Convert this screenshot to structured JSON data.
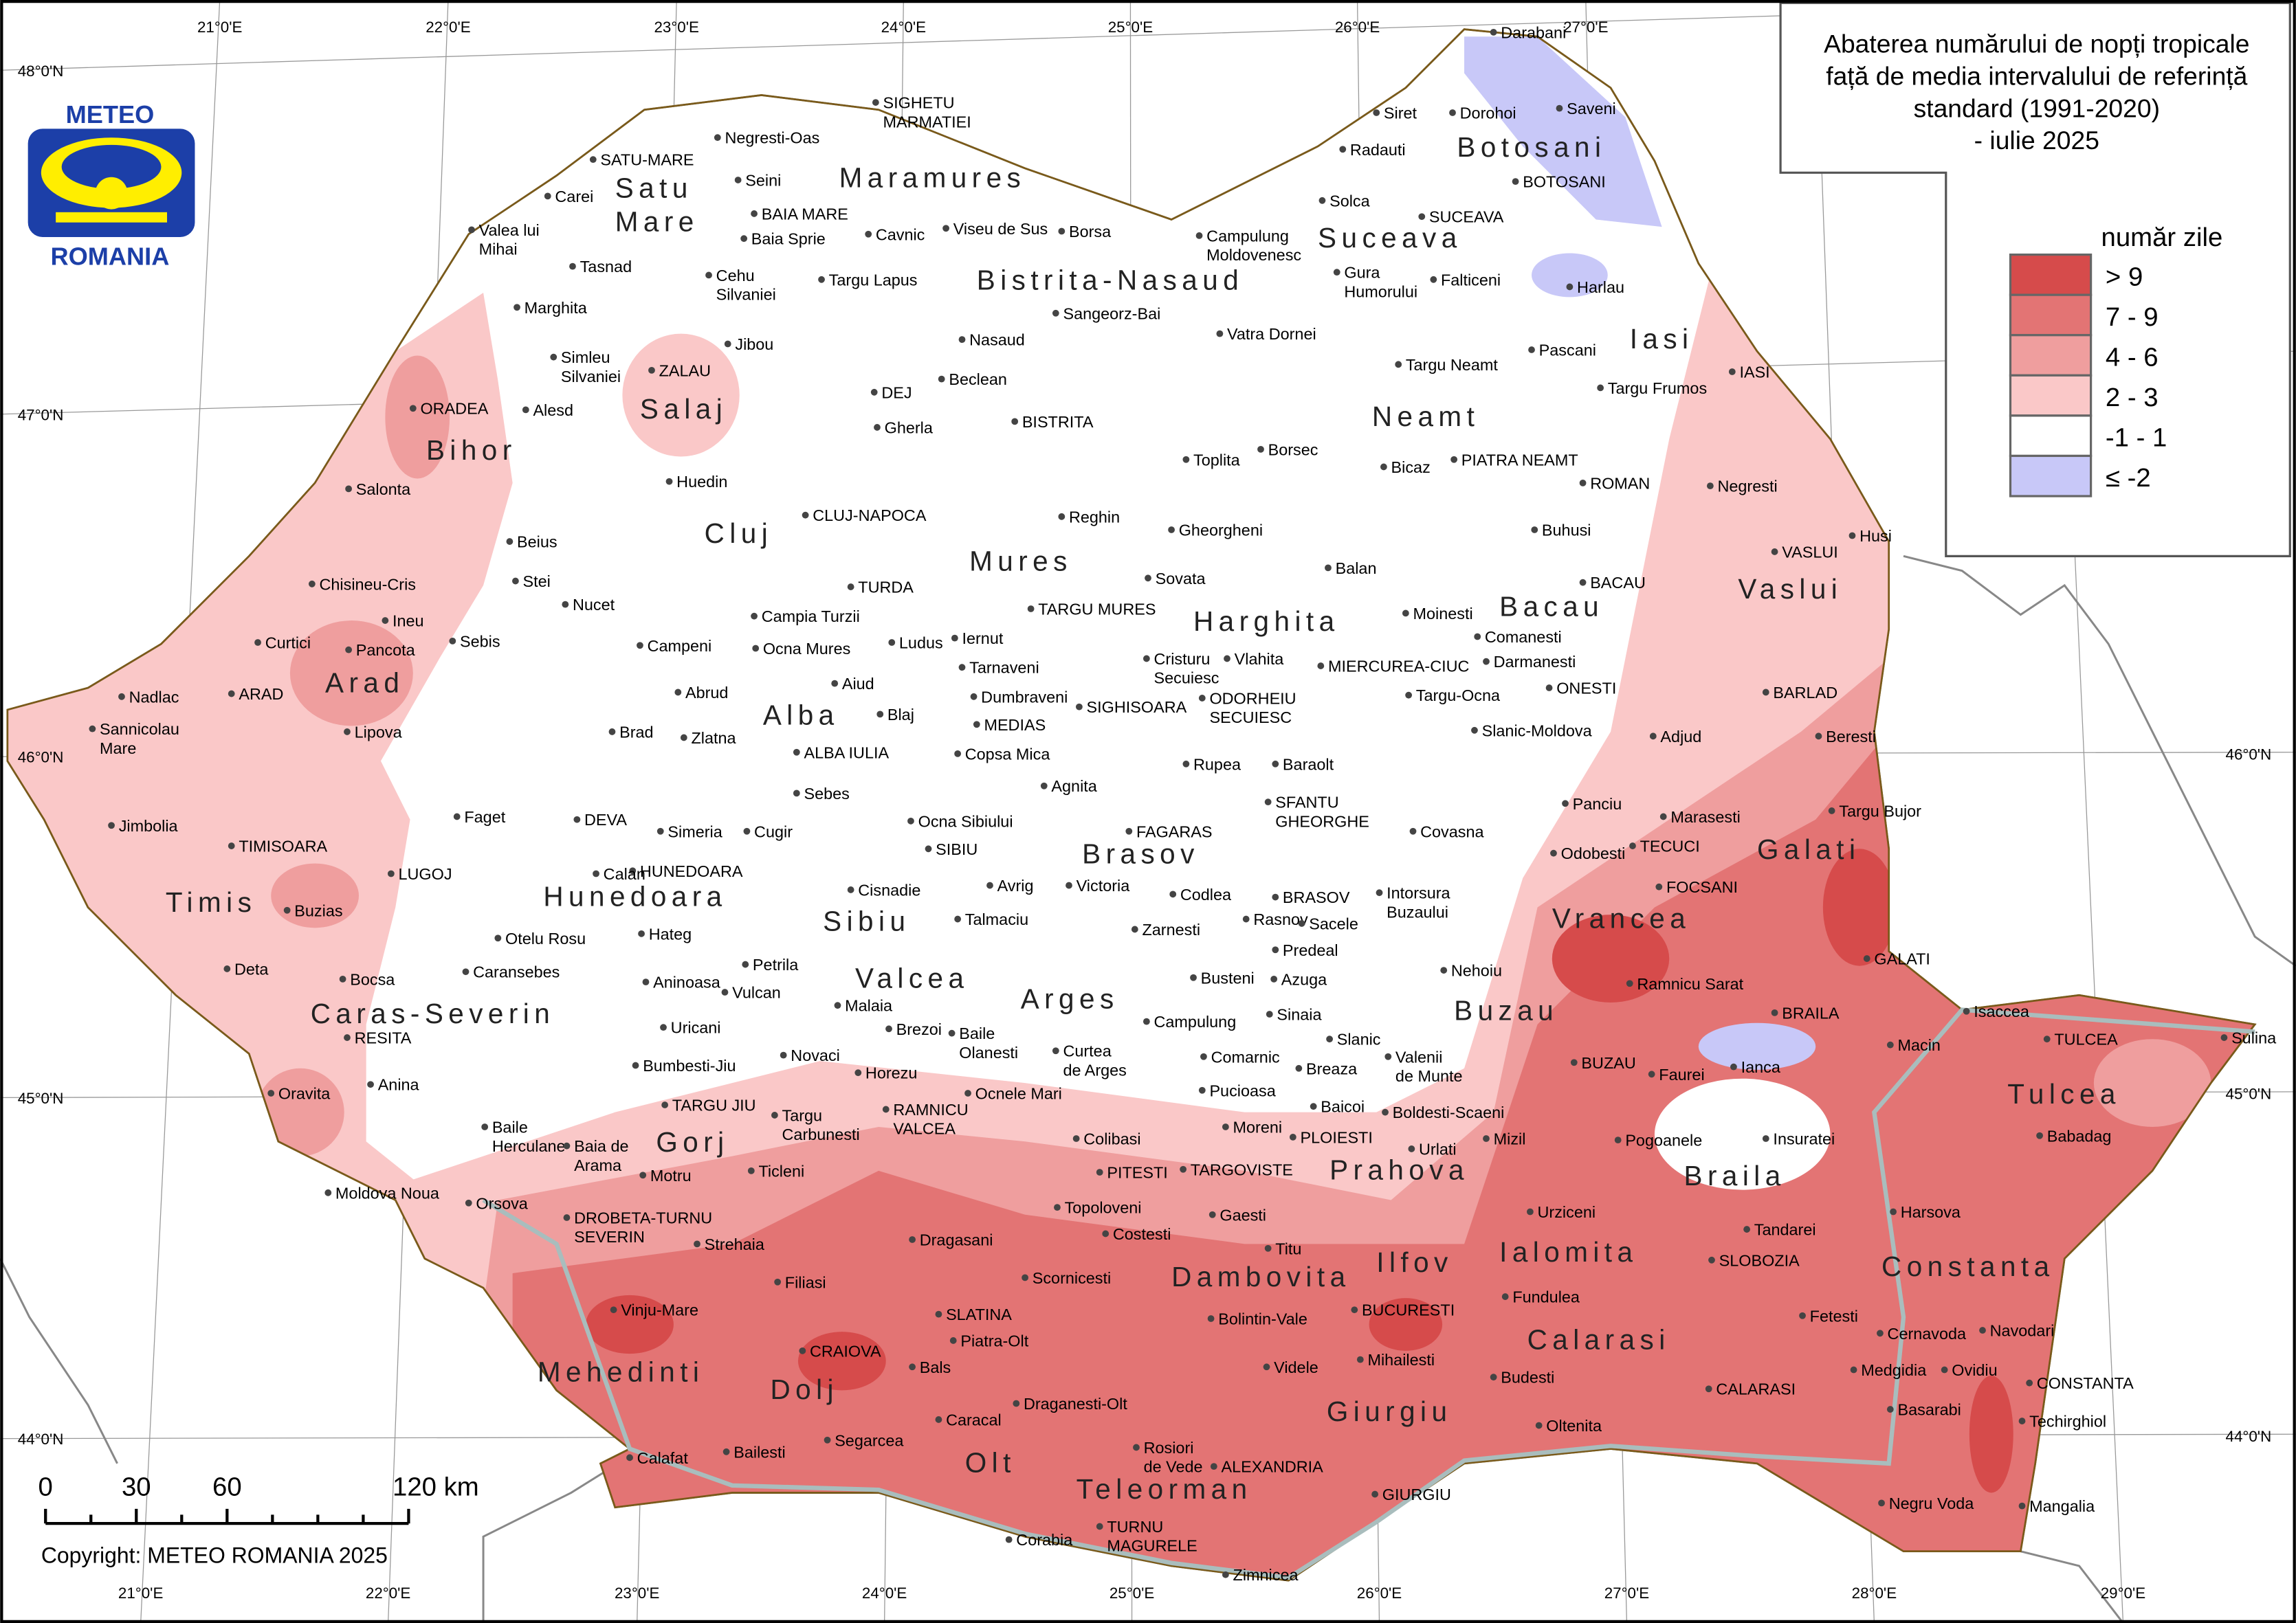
{
  "title": {
    "lines": [
      "Abaterea numărului de nopți tropicale",
      "față de media intervalului de referință",
      "standard (1991-2020)",
      "- iulie 2025"
    ]
  },
  "logo": {
    "top_text": "METEO",
    "bottom_text": "ROMANIA",
    "color_blue": "#1c3fa8",
    "color_yellow": "#ffee00"
  },
  "legend": {
    "title": "număr zile",
    "classes": [
      {
        "label": "> 9",
        "color": "#d64b4b"
      },
      {
        "label": "7 - 9",
        "color": "#e37474"
      },
      {
        "label": "4 - 6",
        "color": "#ef9e9e"
      },
      {
        "label": "2 - 3",
        "color": "#fac8c8"
      },
      {
        "label": "-1 - 1",
        "color": "#ffffff"
      },
      {
        "label": "≤ -2",
        "color": "#c8c8f8"
      }
    ]
  },
  "scale_bar": {
    "labels": [
      "0",
      "30",
      "60",
      "120 km"
    ]
  },
  "copyright": "Copyright: METEO ROMANIA 2025",
  "graticule": {
    "top": [
      "21°0'E",
      "22°0'E",
      "23°0'E",
      "24°0'E",
      "25°0'E",
      "26°0'E",
      "27°0'E"
    ],
    "bottom": [
      "21°0'E",
      "22°0'E",
      "23°0'E",
      "24°0'E",
      "25°0'E",
      "26°0'E",
      "27°0'E",
      "28°0'E",
      "29°0'E"
    ],
    "left": [
      "48°0'N",
      "47°0'N",
      "46°0'N",
      "45°0'N",
      "44°0'N"
    ],
    "right": [
      "46°0'N",
      "45°0'N",
      "44°0'N"
    ]
  },
  "counties": [
    [
      "Satu",
      "Mare"
    ],
    [
      "Maramures"
    ],
    [
      "Bihor"
    ],
    [
      "Salaj"
    ],
    [
      "Cluj"
    ],
    [
      "Bistrita-Nasaud"
    ],
    [
      "Suceava"
    ],
    [
      "Botosani"
    ],
    [
      "Iasi"
    ],
    [
      "Neamt"
    ],
    [
      "Mures"
    ],
    [
      "Harghita"
    ],
    [
      "Bacau"
    ],
    [
      "Vaslui"
    ],
    [
      "Arad"
    ],
    [
      "Alba"
    ],
    [
      "Timis"
    ],
    [
      "Hunedoara"
    ],
    [
      "Sibiu"
    ],
    [
      "Brasov"
    ],
    [
      "Vrancea"
    ],
    [
      "Galati"
    ],
    [
      "Caras-Severin"
    ],
    [
      "Valcea"
    ],
    [
      "Arges"
    ],
    [
      "Buzau"
    ],
    [
      "Tulcea"
    ],
    [
      "Braila"
    ],
    [
      "Gorj"
    ],
    [
      "Prahova"
    ],
    [
      "Mehedinti"
    ],
    [
      "Dolj"
    ],
    [
      "Olt"
    ],
    [
      "Teleorman"
    ],
    [
      "Dambovita"
    ],
    [
      "Ilfov"
    ],
    [
      "Ialomita"
    ],
    [
      "Calarasi"
    ],
    [
      "Constanta"
    ],
    [
      "Giurgiu"
    ]
  ],
  "cities": [
    [
      "Darabani"
    ],
    [
      "Siret"
    ],
    [
      "Dorohoi"
    ],
    [
      "Saveni"
    ],
    [
      "Radauti"
    ],
    [
      "BOTOSANI"
    ],
    [
      "Solca"
    ],
    [
      "SUCEAVA"
    ],
    [
      "Campulung",
      "Moldovenesc"
    ],
    [
      "Gura",
      "Humorului"
    ],
    [
      "Falticeni"
    ],
    [
      "Harlau"
    ],
    [
      "Pascani"
    ],
    [
      "Targu Neamt"
    ],
    [
      "Targu Frumos"
    ],
    [
      "IASI"
    ],
    [
      "Vatra Dornei"
    ],
    [
      "PIATRA NEAMT"
    ],
    [
      "Bicaz"
    ],
    [
      "ROMAN"
    ],
    [
      "Negresti"
    ],
    [
      "Buhusi"
    ],
    [
      "Husi"
    ],
    [
      "VASLUI"
    ],
    [
      "BACAU"
    ],
    [
      "Moinesti"
    ],
    [
      "Comanesti"
    ],
    [
      "Darmanesti"
    ],
    [
      "ONESTI"
    ],
    [
      "Targu-Ocna"
    ],
    [
      "MIERCUREA-CIUC"
    ],
    [
      "BARLAD"
    ],
    [
      "Slanic-Moldova"
    ],
    [
      "Adjud"
    ],
    [
      "Beresti"
    ],
    [
      "Balan"
    ],
    [
      "Gheorgheni"
    ],
    [
      "Borsec"
    ],
    [
      "Toplita"
    ],
    [
      "Reghin"
    ],
    [
      "Sovata"
    ],
    [
      "TARGU MURES"
    ],
    [
      "Iernut"
    ],
    [
      "Ludus"
    ],
    [
      "Tarnaveni"
    ],
    [
      "Cristuru",
      "Secuiesc"
    ],
    [
      "Vlahita"
    ],
    [
      "ODORHEIU",
      "SECUIESC"
    ],
    [
      "Dumbraveni"
    ],
    [
      "SIGHISOARA"
    ],
    [
      "MEDIAS"
    ],
    [
      "Copsa Mica"
    ],
    [
      "Blaj"
    ],
    [
      "Aiud"
    ],
    [
      "TURDA"
    ],
    [
      "Campia Turzii"
    ],
    [
      "Ocna Mures"
    ],
    [
      "CLUJ-NAPOCA"
    ],
    [
      "Huedin"
    ],
    [
      "Gherla"
    ],
    [
      "DEJ"
    ],
    [
      "Beclean"
    ],
    [
      "Nasaud"
    ],
    [
      "BISTRITA"
    ],
    [
      "Sangeorz-Bai"
    ],
    [
      "Targu Lapus"
    ],
    [
      "BAIA MARE"
    ],
    [
      "Baia Sprie"
    ],
    [
      "Cavnic"
    ],
    [
      "Viseu de Sus"
    ],
    [
      "Borsa"
    ],
    [
      "SIGHETU",
      "MARMATIEI"
    ],
    [
      "Negresti-Oas"
    ],
    [
      "SATU-MARE"
    ],
    [
      "Seini"
    ],
    [
      "Carei"
    ],
    [
      "Valea lui",
      "Mihai"
    ],
    [
      "Tasnad"
    ],
    [
      "Cehu",
      "Silvaniei"
    ],
    [
      "Marghita"
    ],
    [
      "Jibou"
    ],
    [
      "Simleu",
      "Silvaniei"
    ],
    [
      "ZALAU"
    ],
    [
      "ORADEA"
    ],
    [
      "Alesd"
    ],
    [
      "Salonta"
    ],
    [
      "Beius"
    ],
    [
      "Stei"
    ],
    [
      "Nucet"
    ],
    [
      "Chisineu-Cris"
    ],
    [
      "Ineu"
    ],
    [
      "Pancota"
    ],
    [
      "Curtici"
    ],
    [
      "Sebis"
    ],
    [
      "Campeni"
    ],
    [
      "Abrud"
    ],
    [
      "Nadlac"
    ],
    [
      "ARAD"
    ],
    [
      "Sannicolau",
      "Mare"
    ],
    [
      "Lipova"
    ],
    [
      "Brad"
    ],
    [
      "Zlatna"
    ],
    [
      "ALBA IULIA"
    ],
    [
      "Sebes"
    ],
    [
      "Jimbolia"
    ],
    [
      "Faget"
    ],
    [
      "DEVA"
    ],
    [
      "Simeria"
    ],
    [
      "Cugir"
    ],
    [
      "HUNEDOARA"
    ],
    [
      "Calan"
    ],
    [
      "TIMISOARA"
    ],
    [
      "LUGOJ"
    ],
    [
      "Buzias"
    ],
    [
      "Otelu Rosu"
    ],
    [
      "Hateg"
    ],
    [
      "Caransebes"
    ],
    [
      "Deta"
    ],
    [
      "Bocsa"
    ],
    [
      "RESITA"
    ],
    [
      "Aninoasa"
    ],
    [
      "Petrila"
    ],
    [
      "Vulcan"
    ],
    [
      "Uricani"
    ],
    [
      "Oravita"
    ],
    [
      "Anina"
    ],
    [
      "Baile",
      "Herculane"
    ],
    [
      "Baia de",
      "Arama"
    ],
    [
      "Moldova Noua"
    ],
    [
      "Orsova"
    ],
    [
      "DROBETA-TURNU",
      "SEVERIN"
    ],
    [
      "Strehaia"
    ],
    [
      "Bumbesti-Jiu"
    ],
    [
      "TARGU JIU"
    ],
    [
      "Motru"
    ],
    [
      "Ticleni"
    ],
    [
      "Targu",
      "Carbunesti"
    ],
    [
      "Novaci"
    ],
    [
      "Horezu"
    ],
    [
      "RAMNICU",
      "VALCEA"
    ],
    [
      "Brezoi"
    ],
    [
      "Baile",
      "Olanesti"
    ],
    [
      "Malaia"
    ],
    [
      "Ocna Sibiului"
    ],
    [
      "Cisnadie"
    ],
    [
      "SIBIU"
    ],
    [
      "Avrig"
    ],
    [
      "Talmaciu"
    ],
    [
      "Victoria"
    ],
    [
      "Agnita"
    ],
    [
      "FAGARAS"
    ],
    [
      "Rupea"
    ],
    [
      "Baraolt"
    ],
    [
      "SFANTU",
      "GHEORGHE"
    ],
    [
      "Covasna"
    ],
    [
      "Codlea"
    ],
    [
      "BRASOV"
    ],
    [
      "Intorsura",
      "Buzaului"
    ],
    [
      "Rasnov"
    ],
    [
      "Sacele"
    ],
    [
      "Zarnesti"
    ],
    [
      "Predeal"
    ],
    [
      "Busteni"
    ],
    [
      "Azuga"
    ],
    [
      "Nehoiu"
    ],
    [
      "Sinaia"
    ],
    [
      "Campulung"
    ],
    [
      "Curtea",
      "de Arges"
    ],
    [
      "Comarnic"
    ],
    [
      "Slanic"
    ],
    [
      "Valenii",
      "de Munte"
    ],
    [
      "Breaza"
    ],
    [
      "Pucioasa"
    ],
    [
      "Ocnele Mari"
    ],
    [
      "Baicoi"
    ],
    [
      "Boldesti-Scaeni"
    ],
    [
      "Moreni"
    ],
    [
      "PLOIESTI"
    ],
    [
      "Urlati"
    ],
    [
      "Colibasi"
    ],
    [
      "PITESTI"
    ],
    [
      "TARGOVISTE"
    ],
    [
      "Mizil"
    ],
    [
      "Topoloveni"
    ],
    [
      "Gaesti"
    ],
    [
      "Costesti"
    ],
    [
      "Titu"
    ],
    [
      "Urziceni"
    ],
    [
      "SLOBOZIA"
    ],
    [
      "Dragasani"
    ],
    [
      "Scornicesti"
    ],
    [
      "Filiasi"
    ],
    [
      "Vinju-Mare"
    ],
    [
      "SLATINA"
    ],
    [
      "Piatra-Olt"
    ],
    [
      "CRAIOVA"
    ],
    [
      "Bals"
    ],
    [
      "Bolintin-Vale"
    ],
    [
      "BUCURESTI"
    ],
    [
      "Fundulea"
    ],
    [
      "Mihailesti"
    ],
    [
      "Videle"
    ],
    [
      "Budesti"
    ],
    [
      "Caracal"
    ],
    [
      "Draganesti-Olt"
    ],
    [
      "Oltenita"
    ],
    [
      "Segarcea"
    ],
    [
      "Bailesti"
    ],
    [
      "Calafat"
    ],
    [
      "Rosiori",
      "de Vede"
    ],
    [
      "ALEXANDRIA"
    ],
    [
      "GIURGIU"
    ],
    [
      "Corabia"
    ],
    [
      "TURNU",
      "MAGURELE"
    ],
    [
      "Zimnicea"
    ],
    [
      "Marasesti"
    ],
    [
      "Panciu"
    ],
    [
      "TECUCI"
    ],
    [
      "Odobesti"
    ],
    [
      "FOCSANI"
    ],
    [
      "Targu Bujor"
    ],
    [
      "GALATI"
    ],
    [
      "Ramnicu Sarat"
    ],
    [
      "BRAILA"
    ],
    [
      "Isaccea"
    ],
    [
      "Macin"
    ],
    [
      "TULCEA"
    ],
    [
      "Sulina"
    ],
    [
      "BUZAU"
    ],
    [
      "Faurei"
    ],
    [
      "Ianca"
    ],
    [
      "Pogoanele"
    ],
    [
      "Insuratei"
    ],
    [
      "Babadag"
    ],
    [
      "Harsova"
    ],
    [
      "Tandarei"
    ],
    [
      "Fetesti"
    ],
    [
      "Cernavoda"
    ],
    [
      "Navodari"
    ],
    [
      "Medgidia"
    ],
    [
      "Ovidiu"
    ],
    [
      "CONSTANTA"
    ],
    [
      "CALARASI"
    ],
    [
      "Basarabi"
    ],
    [
      "Techirghiol"
    ],
    [
      "Negru Voda"
    ],
    [
      "Mangalia"
    ]
  ]
}
